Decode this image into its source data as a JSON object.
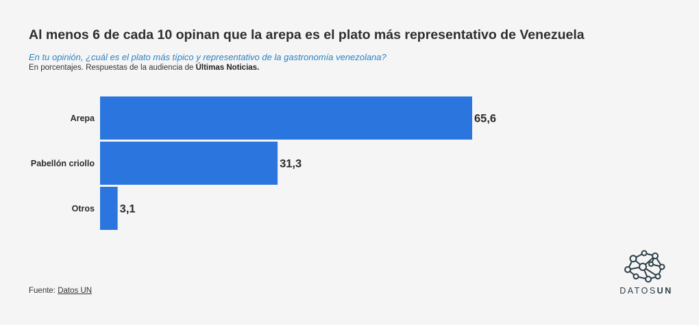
{
  "header": {
    "title": "Al menos 6 de cada 10 opinan que la arepa es el plato más representativo de Venezuela",
    "subtitle": "En tu opinión, ¿cuál es el plato más típico y representativo de la gastronomía venezolana?",
    "note_prefix": "En porcentajes. Respuestas de la audiencia de ",
    "note_source": "Últimas Noticias."
  },
  "chart_data": {
    "type": "bar",
    "orientation": "horizontal",
    "categories": [
      "Arepa",
      "Pabellón criollo",
      "Otros"
    ],
    "values": [
      65.6,
      31.3,
      3.1
    ],
    "value_labels": [
      "65,6",
      "31,3",
      "3,1"
    ],
    "xlim": [
      0,
      65.6
    ],
    "grid": false,
    "bar_color": "#2b76de"
  },
  "footer": {
    "source_prefix": "Fuente: ",
    "source_link": "Datos UN"
  },
  "logo": {
    "icon": "network-nodes-icon",
    "text_light": "DATOS",
    "text_bold": "UN",
    "color": "#2c3e47"
  }
}
